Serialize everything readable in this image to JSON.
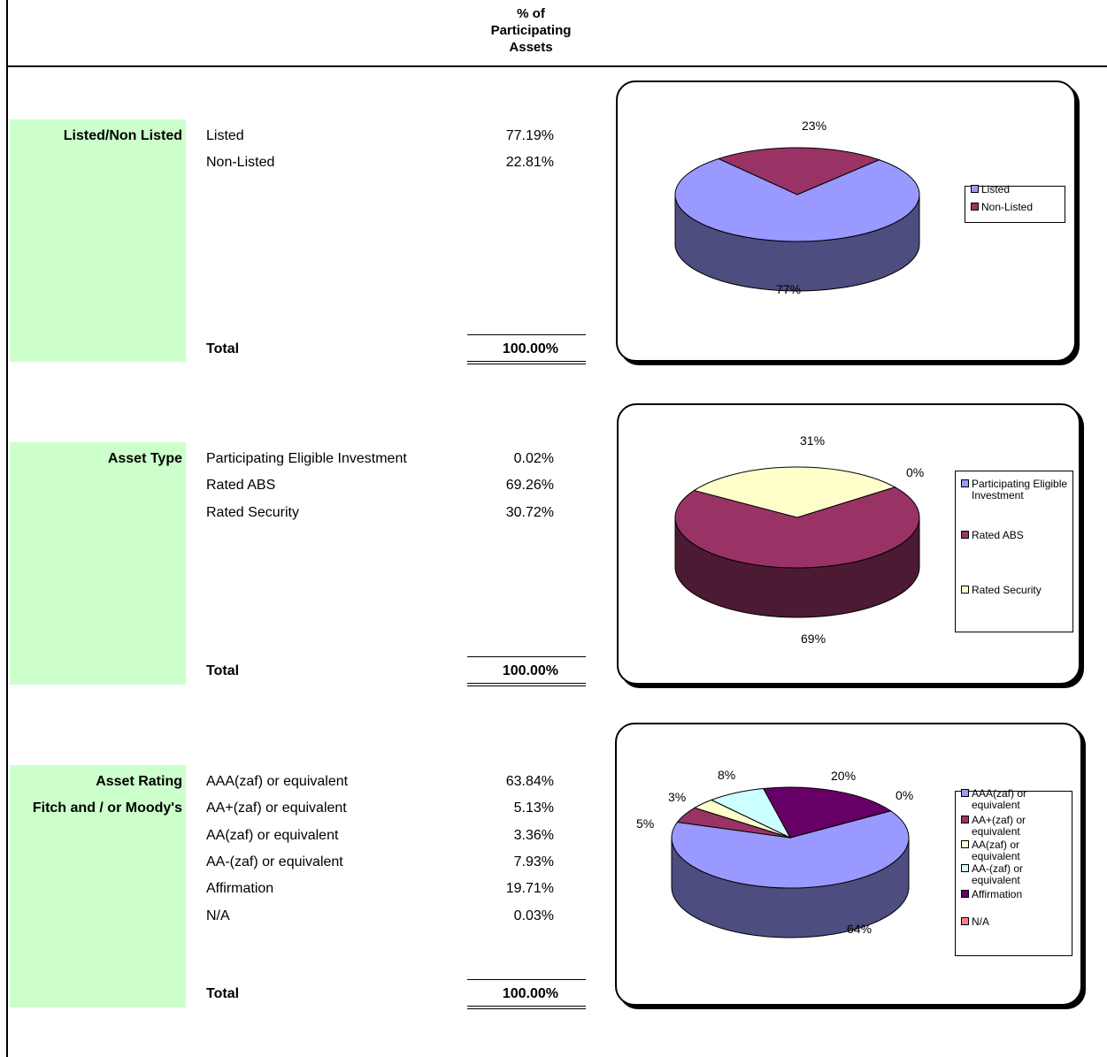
{
  "header": {
    "title_lines": [
      "% of",
      "Participating",
      "Assets"
    ]
  },
  "sections": [
    {
      "category_lines": [
        "Listed/Non Listed"
      ],
      "rows": [
        {
          "label": "Listed",
          "value": "77.19%"
        },
        {
          "label": "Non-Listed",
          "value": "22.81%"
        }
      ],
      "total": {
        "label": "Total",
        "value": "100.00%"
      }
    },
    {
      "category_lines": [
        "Asset Type"
      ],
      "rows": [
        {
          "label": "Participating Eligible Investment",
          "value": "0.02%"
        },
        {
          "label": "Rated ABS",
          "value": "69.26%"
        },
        {
          "label": "Rated Security",
          "value": "30.72%"
        }
      ],
      "total": {
        "label": "Total",
        "value": "100.00%"
      }
    },
    {
      "category_lines": [
        "Asset Rating",
        "Fitch and / or Moody's"
      ],
      "rows": [
        {
          "label": "AAA(zaf) or equivalent",
          "value": "63.84%"
        },
        {
          "label": "AA+(zaf) or equivalent",
          "value": "5.13%"
        },
        {
          "label": "AA(zaf) or equivalent",
          "value": "3.36%"
        },
        {
          "label": "AA-(zaf) or equivalent",
          "value": "7.93%"
        },
        {
          "label": "Affirmation",
          "value": "19.71%"
        },
        {
          "label": "N/A",
          "value": "0.03%"
        }
      ],
      "total": {
        "label": "Total",
        "value": "100.00%"
      }
    }
  ],
  "chart_data": [
    {
      "type": "pie",
      "slices": [
        {
          "name": "Listed",
          "value": 77.19,
          "label": "77%",
          "color": "#9999ff"
        },
        {
          "name": "Non-Listed",
          "value": 22.81,
          "label": "23%",
          "color": "#993366"
        }
      ],
      "legend": {
        "entries": [
          "Listed",
          "Non-Listed"
        ],
        "position": "right"
      }
    },
    {
      "type": "pie",
      "slices": [
        {
          "name": "Participating Eligible Investment",
          "value": 0.02,
          "label": "0%",
          "color": "#9999ff"
        },
        {
          "name": "Rated ABS",
          "value": 69.26,
          "label": "69%",
          "color": "#993366"
        },
        {
          "name": "Rated Security",
          "value": 30.72,
          "label": "31%",
          "color": "#ffffcc"
        }
      ],
      "legend": {
        "entries": [
          "Participating Eligible\nInvestment",
          "Rated ABS",
          "Rated Security"
        ],
        "position": "right"
      }
    },
    {
      "type": "pie",
      "slices": [
        {
          "name": "AAA(zaf) or equivalent",
          "value": 63.84,
          "label": "64%",
          "color": "#9999ff"
        },
        {
          "name": "AA+(zaf) or equivalent",
          "value": 5.13,
          "label": "5%",
          "color": "#993366"
        },
        {
          "name": "AA(zaf) or equivalent",
          "value": 3.36,
          "label": "3%",
          "color": "#ffffcc"
        },
        {
          "name": "AA-(zaf) or equivalent",
          "value": 7.93,
          "label": "8%",
          "color": "#ccffff"
        },
        {
          "name": "Affirmation",
          "value": 19.71,
          "label": "20%",
          "color": "#660066"
        },
        {
          "name": "N/A",
          "value": 0.03,
          "label": "0%",
          "color": "#ff8080"
        }
      ],
      "legend": {
        "entries": [
          "AAA(zaf) or\nequivalent",
          "AA+(zaf) or\nequivalent",
          "AA(zaf) or\nequivalent",
          "AA-(zaf) or\nequivalent",
          "Affirmation",
          "N/A"
        ],
        "position": "right"
      }
    }
  ]
}
